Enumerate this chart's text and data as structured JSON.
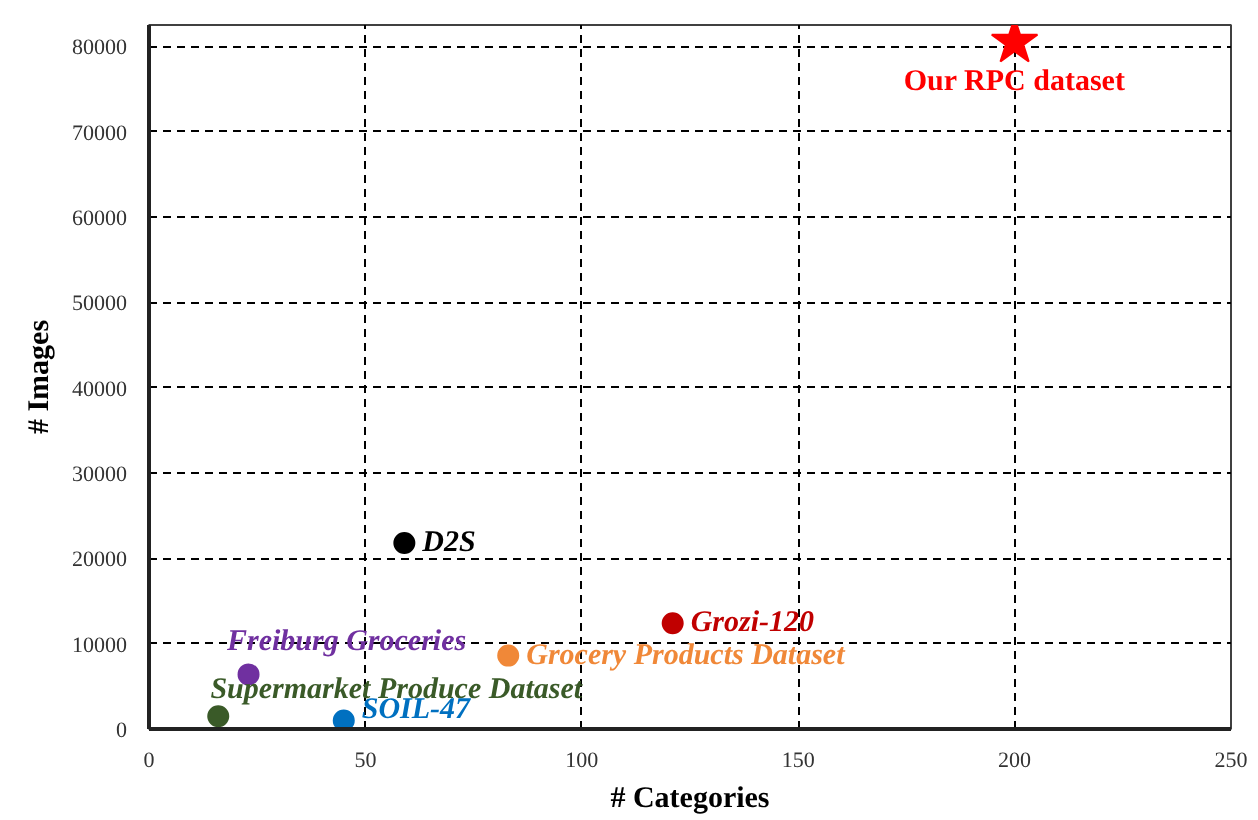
{
  "chart_data": {
    "type": "scatter",
    "xlabel": "# Categories",
    "ylabel": "# Images",
    "xlim": [
      0,
      250
    ],
    "xticks": [
      0,
      50,
      100,
      150,
      200,
      250
    ],
    "ylim": [
      0,
      82500
    ],
    "yticks": [
      0,
      10000,
      20000,
      30000,
      40000,
      50000,
      60000,
      70000,
      80000
    ],
    "grid": true,
    "marker": "circle",
    "series": [
      {
        "name": "Our RPC dataset",
        "color": "#ff0000",
        "x": [
          200
        ],
        "values": [
          80500
        ],
        "marker": "star"
      },
      {
        "name": "D2S",
        "color": "#000000",
        "x": [
          59
        ],
        "values": [
          21800
        ]
      },
      {
        "name": "Grozi-120",
        "color": "#c00000",
        "x": [
          121
        ],
        "values": [
          12400
        ]
      },
      {
        "name": "Grocery Products Dataset",
        "color": "#f08838",
        "x": [
          83
        ],
        "values": [
          8600
        ]
      },
      {
        "name": "Freiburg Groceries",
        "color": "#7030a0",
        "x": [
          23
        ],
        "values": [
          6400
        ]
      },
      {
        "name": "Supermarket Produce Dataset",
        "color": "#3a5a28",
        "x": [
          16
        ],
        "values": [
          1500
        ]
      },
      {
        "name": "SOIL-47",
        "color": "#0070c0",
        "x": [
          45
        ],
        "values": [
          1000
        ]
      }
    ]
  }
}
